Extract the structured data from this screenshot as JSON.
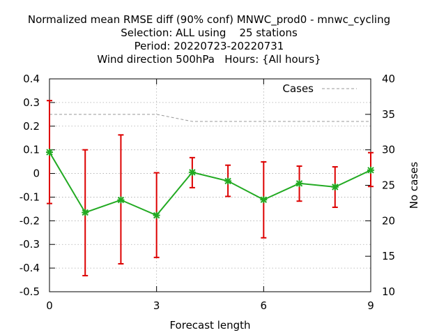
{
  "chart_data": {
    "type": "line",
    "title_lines": [
      "Normalized mean RMSE diff (90% conf) MNWC_prod0 - mnwc_cycling",
      "Selection: ALL using    25 stations",
      "Period: 20220723-20220731",
      "Wind direction 500hPa   Hours: {All hours}"
    ],
    "xlabel": "Forecast length",
    "ylabel": "",
    "y2label": "No cases",
    "xlim": [
      0,
      9
    ],
    "ylim": [
      -0.5,
      0.4
    ],
    "y2lim": [
      10,
      40
    ],
    "xticks": [
      0,
      3,
      6,
      9
    ],
    "yticks": [
      -0.5,
      -0.4,
      -0.3,
      -0.2,
      -0.1,
      0,
      0.1,
      0.2,
      0.3,
      0.4
    ],
    "yticklabels": [
      "-0.5",
      "-0.4",
      "-0.3",
      "-0.2",
      "-0.1",
      "0",
      "0.1",
      "0.2",
      "0.3",
      "0.4"
    ],
    "y2ticks": [
      10,
      15,
      20,
      25,
      30,
      35,
      40
    ],
    "grid": true,
    "legend_position": "top-right",
    "series": [
      {
        "name": "",
        "color": "#22aa22",
        "marker_color": "#22aa22",
        "error_color": "#dd0000",
        "x": [
          0,
          1,
          2,
          3,
          4,
          5,
          6,
          7,
          8,
          9
        ],
        "y": [
          0.09,
          -0.165,
          -0.112,
          -0.177,
          0.005,
          -0.032,
          -0.111,
          -0.042,
          -0.057,
          0.014
        ],
        "err_high": [
          0.308,
          0.1,
          0.163,
          0.003,
          0.067,
          0.035,
          0.049,
          0.031,
          0.028,
          0.088
        ],
        "err_low": [
          -0.127,
          -0.432,
          -0.382,
          -0.355,
          -0.06,
          -0.097,
          -0.272,
          -0.117,
          -0.143,
          -0.055
        ]
      },
      {
        "name": "Cases",
        "axis": "y2",
        "color": "#999999",
        "dashed": true,
        "x": [
          0,
          1,
          2,
          3,
          4,
          5,
          6,
          7,
          8,
          9
        ],
        "y": [
          35,
          35,
          35,
          35,
          34,
          34,
          34,
          34,
          34,
          34
        ]
      }
    ]
  }
}
